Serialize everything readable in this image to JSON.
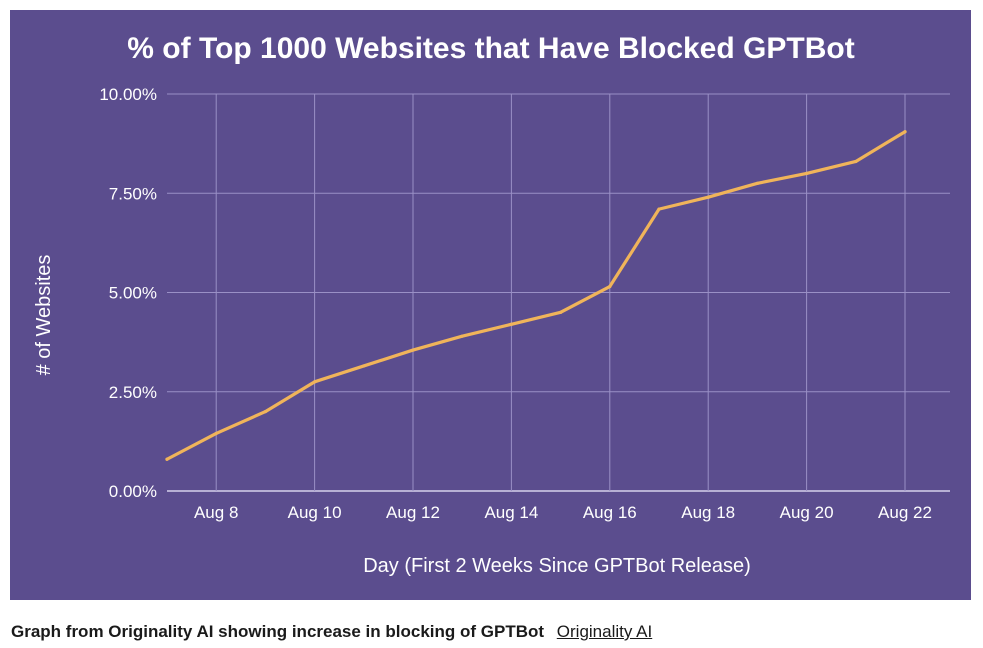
{
  "colors": {
    "background": "#5b4d8e",
    "grid": "#9a90c6",
    "line": "#f0b45a",
    "text": "#ffffff"
  },
  "chart_data": {
    "type": "line",
    "title": "% of Top 1000 Websites that Have Blocked GPTBot",
    "xlabel": "Day (First 2 Weeks Since GPTBot Release)",
    "ylabel": "# of Websites",
    "x_ticks": [
      "Aug 8",
      "Aug 10",
      "Aug 12",
      "Aug 14",
      "Aug 16",
      "Aug 18",
      "Aug 20",
      "Aug 22"
    ],
    "y_ticks": [
      "0.00%",
      "2.50%",
      "5.00%",
      "7.50%",
      "10.00%"
    ],
    "ylim": [
      0,
      10
    ],
    "xlim": [
      "Aug 7",
      "Aug 22"
    ],
    "grid": true,
    "series": [
      {
        "x": [
          "Aug 7",
          "Aug 8",
          "Aug 9",
          "Aug 10",
          "Aug 11",
          "Aug 12",
          "Aug 13",
          "Aug 14",
          "Aug 15",
          "Aug 16",
          "Aug 17",
          "Aug 18",
          "Aug 19",
          "Aug 20",
          "Aug 21",
          "Aug 22"
        ],
        "values": [
          0.8,
          1.45,
          2.0,
          2.75,
          3.15,
          3.55,
          3.9,
          4.2,
          4.5,
          5.15,
          7.1,
          7.4,
          7.75,
          8.0,
          8.3,
          9.05
        ]
      }
    ]
  },
  "caption": {
    "text": "Graph from Originality AI showing increase in blocking of GPTBot",
    "link": "Originality AI"
  }
}
